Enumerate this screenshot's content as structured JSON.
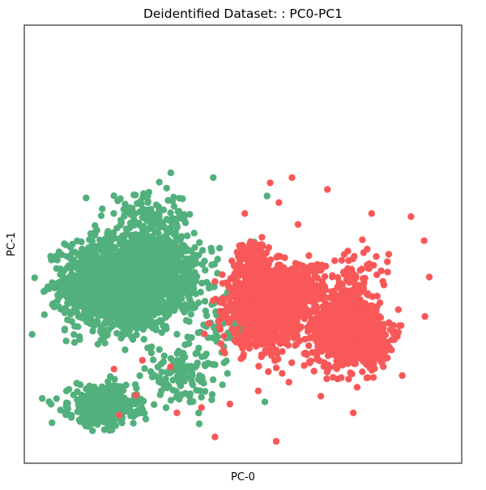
{
  "chart_data": {
    "type": "scatter",
    "title": "Deidentified Dataset: : PC0-PC1",
    "xlabel": "PC-0",
    "ylabel": "PC-1",
    "xlim": [
      0,
      100
    ],
    "ylim": [
      0,
      100
    ],
    "x_ticks_visible": false,
    "y_ticks_visible": false,
    "grid": false,
    "legend": "none",
    "series": [
      {
        "color": "#52b07c",
        "clusters": [
          {
            "center": [
              23,
              41
            ],
            "spread": [
              12,
              10
            ],
            "count": 1400
          },
          {
            "center": [
              16,
              40
            ],
            "spread": [
              7,
              6
            ],
            "count": 400
          },
          {
            "center": [
              32,
              44
            ],
            "spread": [
              8,
              8
            ],
            "count": 500
          },
          {
            "center": [
              18,
              13
            ],
            "spread": [
              7,
              4
            ],
            "count": 450
          },
          {
            "center": [
              36,
              20
            ],
            "spread": [
              8,
              5
            ],
            "count": 120
          },
          {
            "center": [
              29,
              56
            ],
            "spread": [
              9,
              5
            ],
            "count": 120
          },
          {
            "center": [
              45,
              32
            ],
            "spread": [
              6,
              6
            ],
            "count": 60
          }
        ],
        "extra_points": [
          [
            33.5,
            66.3
          ],
          [
            43.2,
            65.2
          ],
          [
            17.6,
            56.5
          ],
          [
            55.5,
            61.0
          ],
          [
            52.6,
            50.5
          ],
          [
            4.1,
            14.8
          ],
          [
            40.0,
            9.0
          ],
          [
            61.0,
            39.0
          ],
          [
            55.0,
            14.0
          ],
          [
            11.0,
            43.0
          ]
        ]
      },
      {
        "color": "#f95858",
        "clusters": [
          {
            "center": [
              55,
              36
            ],
            "spread": [
              7,
              8
            ],
            "count": 1300
          },
          {
            "center": [
              72,
              30
            ],
            "spread": [
              6,
              7
            ],
            "count": 600
          },
          {
            "center": [
              78,
              29
            ],
            "spread": [
              5,
              6
            ],
            "count": 400
          },
          {
            "center": [
              63,
              40
            ],
            "spread": [
              5,
              6
            ],
            "count": 250
          },
          {
            "center": [
              75,
              40
            ],
            "spread": [
              7,
              8
            ],
            "count": 120
          },
          {
            "center": [
              52,
              45
            ],
            "spread": [
              3,
              5
            ],
            "count": 150
          }
        ],
        "extra_points": [
          [
            61.2,
            65.2
          ],
          [
            69.3,
            62.5
          ],
          [
            58.2,
            59.5
          ],
          [
            62.6,
            54.5
          ],
          [
            79.4,
            57.0
          ],
          [
            88.4,
            56.3
          ],
          [
            91.4,
            50.8
          ],
          [
            92.6,
            42.5
          ],
          [
            91.6,
            33.5
          ],
          [
            86.4,
            20.0
          ],
          [
            75.2,
            11.5
          ],
          [
            57.6,
            5.0
          ],
          [
            43.6,
            6.0
          ],
          [
            21.7,
            11.0
          ],
          [
            34.9,
            11.5
          ],
          [
            25.5,
            15.5
          ],
          [
            27.0,
            23.5
          ],
          [
            33.4,
            22.0
          ],
          [
            40.5,
            12.7
          ],
          [
            47.0,
            13.5
          ],
          [
            53.5,
            16.5
          ],
          [
            60.5,
            18.5
          ],
          [
            67.8,
            15.3
          ],
          [
            71.0,
            22.0
          ],
          [
            83.0,
            46.0
          ],
          [
            77.3,
            51.0
          ],
          [
            50.4,
            57.0
          ],
          [
            56.2,
            64.0
          ],
          [
            20.5,
            21.5
          ]
        ]
      }
    ]
  }
}
